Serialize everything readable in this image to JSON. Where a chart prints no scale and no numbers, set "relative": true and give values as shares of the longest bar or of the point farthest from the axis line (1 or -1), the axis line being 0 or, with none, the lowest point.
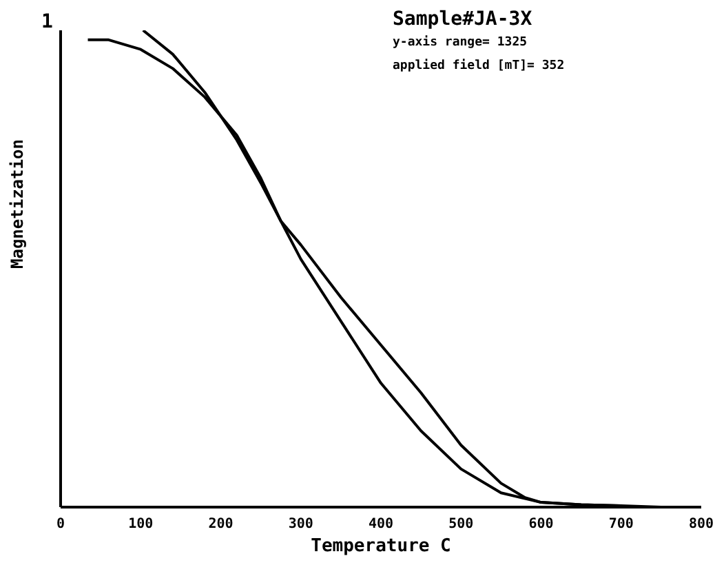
{
  "chart_data": {
    "type": "line",
    "relative": true,
    "xlabel": "Temperature  C",
    "ylabel": "Magnetization",
    "annotations": [
      "1",
      "Sample#JA-3X",
      "y-axis range= 1325",
      "applied field [mT]= 352"
    ],
    "xlim": [
      0,
      800
    ],
    "xticks": [
      0,
      100,
      200,
      300,
      400,
      500,
      600,
      700,
      800
    ],
    "grid": false,
    "legend": false,
    "marker": "none",
    "line_style": "solid",
    "series": [
      {
        "color": "#000000",
        "x": [
          34,
          60,
          100,
          140,
          180,
          220,
          250,
          275,
          300,
          350,
          400,
          450,
          500,
          550,
          600,
          650,
          700,
          750
        ],
        "values": [
          0.98,
          0.98,
          0.96,
          0.92,
          0.86,
          0.78,
          0.69,
          0.6,
          0.52,
          0.39,
          0.26,
          0.16,
          0.08,
          0.03,
          0.01,
          0.005,
          0.003,
          0
        ]
      },
      {
        "color": "#000000",
        "x": [
          103,
          140,
          180,
          220,
          250,
          275,
          300,
          350,
          400,
          450,
          500,
          550,
          580,
          600,
          650,
          700
        ],
        "values": [
          1,
          0.95,
          0.87,
          0.77,
          0.68,
          0.6,
          0.55,
          0.44,
          0.34,
          0.24,
          0.13,
          0.05,
          0.02,
          0.01,
          0.005,
          0.003
        ]
      }
    ]
  }
}
